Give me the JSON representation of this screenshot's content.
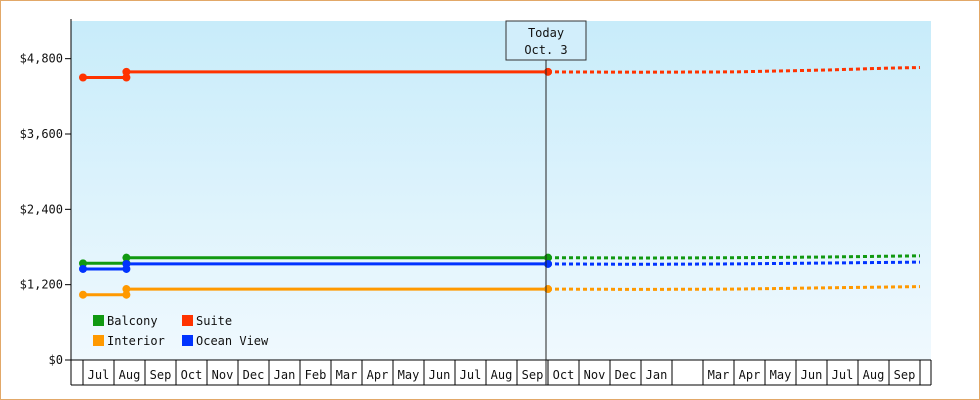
{
  "chart_data": {
    "type": "line",
    "x_months": [
      "Jul",
      "Aug",
      "Sep",
      "Oct",
      "Nov",
      "Dec",
      "Jan",
      "Feb",
      "Mar",
      "Apr",
      "May",
      "Jun",
      "Jul",
      "Aug",
      "Sep",
      "Oct",
      "Nov",
      "Dec",
      "Jan",
      "",
      "Mar",
      "Apr",
      "May",
      "Jun",
      "Jul",
      "Aug",
      "Sep"
    ],
    "ylim": [
      0,
      5400
    ],
    "y_ticks": [
      {
        "value": 0,
        "label": "$0"
      },
      {
        "value": 1200,
        "label": "$1,200"
      },
      {
        "value": 2400,
        "label": "$2,400"
      },
      {
        "value": 3600,
        "label": "$3,600"
      },
      {
        "value": 4800,
        "label": "$4,800"
      }
    ],
    "today": {
      "line1": "Today",
      "line2": "Oct. 3",
      "index": 15
    },
    "series": [
      {
        "name": "Suite",
        "color": "#ff3300",
        "history": [
          [
            0,
            4500
          ],
          [
            1.4,
            4500
          ],
          [
            1.4,
            4590
          ],
          [
            15,
            4590
          ]
        ],
        "forecast": [
          [
            15,
            4590
          ],
          [
            18,
            4585
          ],
          [
            21,
            4590
          ],
          [
            24,
            4620
          ],
          [
            26,
            4650
          ],
          [
            27,
            4660
          ]
        ]
      },
      {
        "name": "Balcony",
        "color": "#119911",
        "history": [
          [
            0,
            1540
          ],
          [
            1.4,
            1540
          ],
          [
            1.4,
            1630
          ],
          [
            15,
            1630
          ]
        ],
        "forecast": [
          [
            15,
            1630
          ],
          [
            18,
            1625
          ],
          [
            21,
            1630
          ],
          [
            24,
            1640
          ],
          [
            27,
            1660
          ]
        ]
      },
      {
        "name": "Ocean View",
        "color": "#0033ff",
        "history": [
          [
            0,
            1450
          ],
          [
            1.4,
            1450
          ],
          [
            1.4,
            1530
          ],
          [
            15,
            1530
          ]
        ],
        "forecast": [
          [
            15,
            1530
          ],
          [
            18,
            1525
          ],
          [
            21,
            1530
          ],
          [
            24,
            1545
          ],
          [
            27,
            1560
          ]
        ]
      },
      {
        "name": "Interior",
        "color": "#ff9900",
        "history": [
          [
            0,
            1040
          ],
          [
            1.4,
            1040
          ],
          [
            1.4,
            1130
          ],
          [
            15,
            1130
          ]
        ],
        "forecast": [
          [
            15,
            1130
          ],
          [
            18,
            1125
          ],
          [
            21,
            1130
          ],
          [
            24,
            1150
          ],
          [
            27,
            1170
          ]
        ]
      }
    ],
    "markers": [
      {
        "series": "Suite",
        "points": [
          [
            0,
            4500
          ],
          [
            1.4,
            4500
          ],
          [
            1.4,
            4590
          ],
          [
            15,
            4590
          ]
        ]
      },
      {
        "series": "Balcony",
        "points": [
          [
            0,
            1540
          ],
          [
            1.4,
            1540
          ],
          [
            1.4,
            1630
          ],
          [
            15,
            1630
          ]
        ]
      },
      {
        "series": "Ocean View",
        "points": [
          [
            0,
            1450
          ],
          [
            1.4,
            1450
          ],
          [
            1.4,
            1530
          ],
          [
            15,
            1530
          ]
        ]
      },
      {
        "series": "Interior",
        "points": [
          [
            0,
            1040
          ],
          [
            1.4,
            1040
          ],
          [
            1.4,
            1130
          ],
          [
            15,
            1130
          ]
        ]
      }
    ],
    "legend": {
      "placement": "bottom-left",
      "items": [
        {
          "name": "Balcony",
          "color": "#119911"
        },
        {
          "name": "Suite",
          "color": "#ff3300"
        },
        {
          "name": "Interior",
          "color": "#ff9900"
        },
        {
          "name": "Ocean View",
          "color": "#0033ff"
        }
      ]
    }
  }
}
